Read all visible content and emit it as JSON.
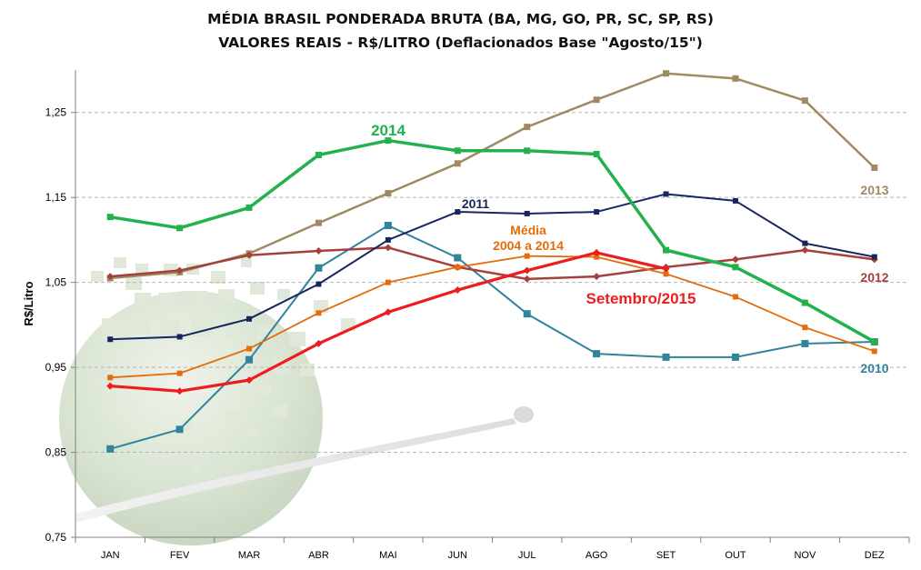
{
  "chart_data": {
    "type": "line",
    "title": "MÉDIA BRASIL PONDERADA BRUTA (BA, MG, GO, PR, SC, SP, RS)",
    "subtitle": "VALORES REAIS - R$/LITRO (Deflacionados Base \"Agosto/15\")",
    "xlabel": "",
    "ylabel": "R$/Litro",
    "ylim": [
      0.75,
      1.3
    ],
    "yticks": [
      "0,75",
      "0,85",
      "0,95",
      "1,05",
      "1,15",
      "1,25"
    ],
    "ytick_values": [
      0.75,
      0.85,
      0.95,
      1.05,
      1.15,
      1.25
    ],
    "categories": [
      "JAN",
      "FEV",
      "MAR",
      "ABR",
      "MAI",
      "JUN",
      "JUL",
      "AGO",
      "SET",
      "OUT",
      "NOV",
      "DEZ"
    ],
    "grid": true,
    "series": [
      {
        "name": "2010",
        "label": "2010",
        "color": "#31849b",
        "marker": "square",
        "values": [
          0.854,
          0.877,
          0.959,
          1.067,
          1.117,
          1.079,
          1.013,
          0.966,
          0.962,
          0.962,
          0.978,
          0.98
        ]
      },
      {
        "name": "2013",
        "label": "2013",
        "color": "#a08a64",
        "marker": "square",
        "values": [
          1.055,
          1.062,
          1.084,
          1.12,
          1.155,
          1.19,
          1.233,
          1.265,
          1.296,
          1.29,
          1.264,
          1.185
        ]
      },
      {
        "name": "2012",
        "label": "2012",
        "color": "#a5403c",
        "marker": "diamond",
        "values": [
          1.057,
          1.064,
          1.082,
          1.087,
          1.091,
          1.068,
          1.054,
          1.057,
          1.068,
          1.077,
          1.088,
          1.077
        ]
      },
      {
        "name": "Média 2004 a 2014",
        "label_lines": [
          "Média",
          "2004 a 2014"
        ],
        "color": "#e46c0a",
        "marker": "square",
        "values": [
          0.938,
          0.943,
          0.972,
          1.014,
          1.05,
          1.068,
          1.081,
          1.08,
          1.06,
          1.033,
          0.997,
          0.969
        ]
      },
      {
        "name": "2011",
        "label": "2011",
        "color": "#17265e",
        "marker": "square",
        "values": [
          0.983,
          0.986,
          1.007,
          1.048,
          1.1,
          1.133,
          1.131,
          1.133,
          1.154,
          1.146,
          1.096,
          1.08
        ]
      },
      {
        "name": "Setembro/2015",
        "label": "Setembro/2015",
        "color": "#ee1c1c",
        "marker": "diamond",
        "values": [
          0.928,
          0.922,
          0.935,
          0.978,
          1.015,
          1.041,
          1.064,
          1.085,
          1.066,
          null,
          null,
          null
        ]
      },
      {
        "name": "2014",
        "label": "2014",
        "color": "#22b14c",
        "marker": "square",
        "values": [
          1.127,
          1.114,
          1.138,
          1.2,
          1.217,
          1.205,
          1.205,
          1.201,
          1.088,
          1.068,
          1.026,
          0.98
        ]
      }
    ]
  }
}
